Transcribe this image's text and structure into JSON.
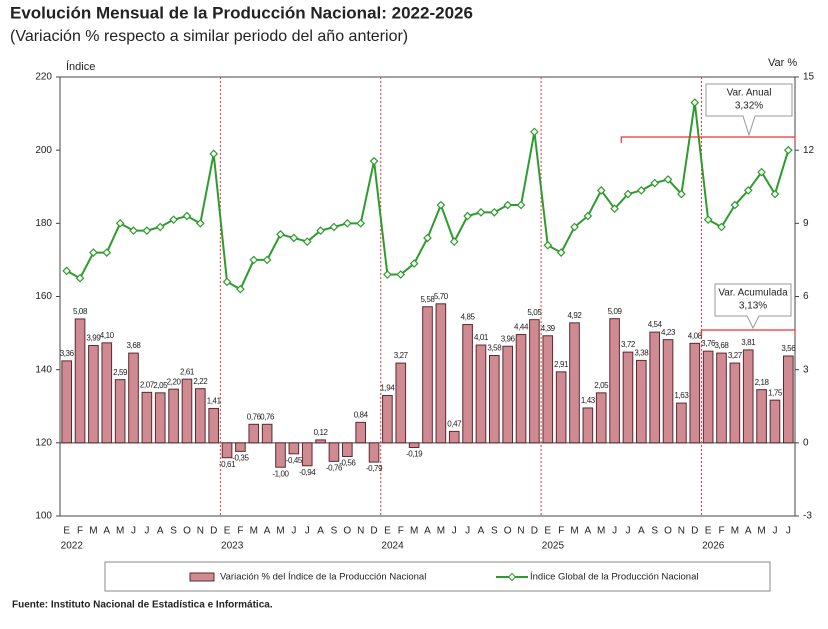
{
  "chart_data": {
    "type": "bar-line",
    "title": "Evolución Mensual de la Producción Nacional: 2022-2026",
    "subtitle": "(Variación % respecto a similar periodo del año anterior)",
    "y_label": "Índice",
    "y2_label": "Var %",
    "source": "Fuente: Instituto Nacional de Estadística e Informática.",
    "categories": [
      "E",
      "F",
      "M",
      "A",
      "M",
      "J",
      "J",
      "A",
      "S",
      "O",
      "N",
      "D",
      "E",
      "F",
      "M",
      "A",
      "M",
      "J",
      "J",
      "A",
      "S",
      "O",
      "N",
      "D",
      "E",
      "F",
      "M",
      "A",
      "M",
      "J",
      "J",
      "A",
      "S",
      "O",
      "N",
      "D",
      "E",
      "F",
      "M",
      "A",
      "M",
      "J",
      "J",
      "A",
      "S",
      "O",
      "N",
      "D",
      "E",
      "F",
      "M",
      "A",
      "M",
      "J",
      "J"
    ],
    "years": [
      "2022",
      "2023",
      "2024",
      "2025",
      "2026"
    ],
    "ylim": [
      100,
      220
    ],
    "yticks": [
      100,
      120,
      140,
      160,
      180,
      200,
      220
    ],
    "y2lim": [
      -3,
      15
    ],
    "y2ticks": [
      -3,
      0,
      3,
      6,
      9,
      12,
      15
    ],
    "series": [
      {
        "name": "Variación % del Índice de la Producción Nacional",
        "type": "bar",
        "axis": "y2",
        "color": "#d08a92",
        "values": [
          3.36,
          5.08,
          3.99,
          4.1,
          2.59,
          3.68,
          2.07,
          2.05,
          2.2,
          2.61,
          2.22,
          1.41,
          -0.61,
          -0.35,
          0.76,
          0.76,
          -1.0,
          -0.45,
          -0.94,
          0.12,
          -0.76,
          -0.56,
          0.84,
          -0.79,
          1.94,
          3.27,
          -0.19,
          5.58,
          5.7,
          0.47,
          4.85,
          4.01,
          3.58,
          3.96,
          4.44,
          5.05,
          4.39,
          2.91,
          4.92,
          1.43,
          2.05,
          5.09,
          3.72,
          3.38,
          4.54,
          4.23,
          1.63,
          4.08,
          3.76,
          3.68,
          3.27,
          3.81,
          2.18,
          1.75,
          3.56
        ],
        "value_labels": [
          "3,36",
          "5,08",
          "3,99",
          "4,10",
          "2,59",
          "3,68",
          "2,07",
          "2,05",
          "2,20",
          "2,61",
          "2,22",
          "1,41",
          "-0,61",
          "-0,35",
          "0,76",
          "0,76",
          "-1,00",
          "-0,45",
          "-0,94",
          "0,12",
          "-0,76",
          "-0,56",
          "0,84",
          "-0,79",
          "1,94",
          "3,27",
          "-0,19",
          "5,58",
          "5,70",
          "0,47",
          "4,85",
          "4,01",
          "3,58",
          "3,96",
          "4,44",
          "5,05",
          "4,39",
          "2,91",
          "4,92",
          "1,43",
          "2,05",
          "5,09",
          "3,72",
          "3,38",
          "4,54",
          "4,23",
          "1,63",
          "4,08",
          "3,76",
          "3,68",
          "3,27",
          "3,81",
          "2,18",
          "1,75",
          "3,56"
        ]
      },
      {
        "name": "Índice Global de la Producción Nacional",
        "type": "line",
        "axis": "y",
        "color": "#2e9b2e",
        "values": [
          167,
          165,
          172,
          172,
          180,
          178,
          178,
          179,
          181,
          182,
          180,
          199,
          164,
          162,
          170,
          170,
          177,
          176,
          175,
          178,
          179,
          180,
          180,
          197,
          166,
          166,
          169,
          176,
          185,
          175,
          182,
          183,
          183,
          185,
          185,
          205,
          174,
          172,
          179,
          182,
          189,
          184,
          188,
          189,
          191,
          192,
          188,
          213,
          181,
          179,
          185,
          189,
          194,
          188,
          200
        ]
      }
    ],
    "annotations": [
      {
        "title": "Var. Anual",
        "value": "3,32%"
      },
      {
        "title": "Var. Acumulada",
        "value": "3,13%"
      }
    ]
  }
}
